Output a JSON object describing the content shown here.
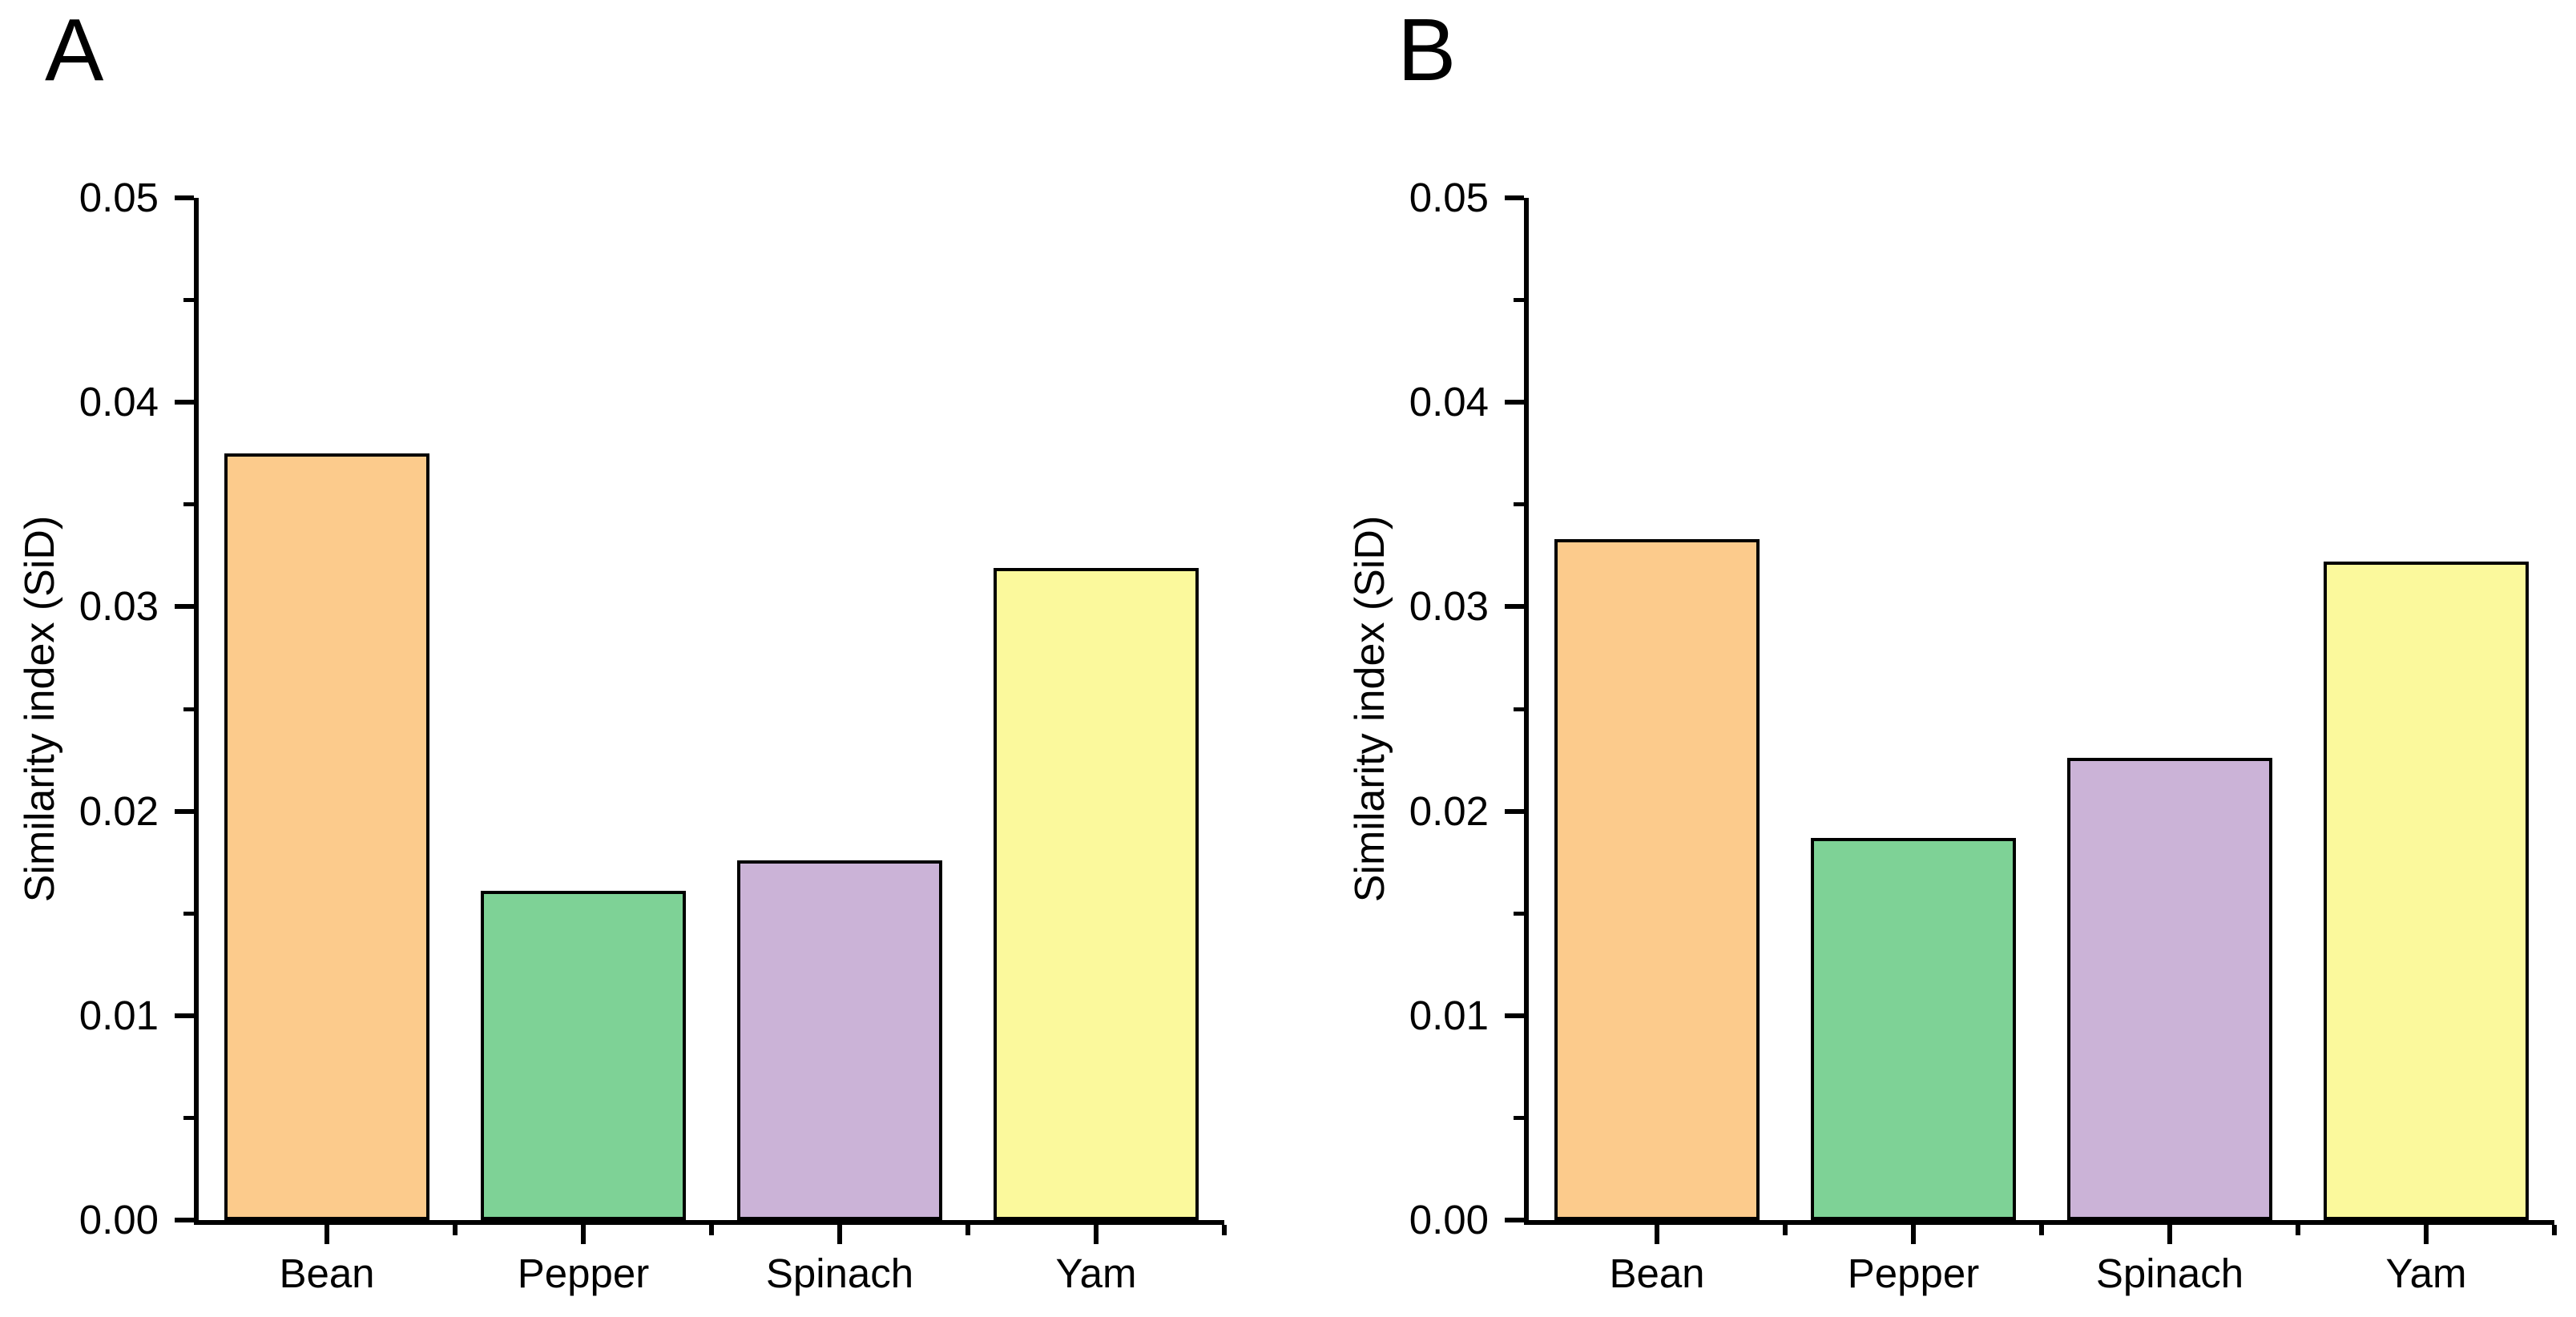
{
  "figure": {
    "panel_letters": [
      "A",
      "B"
    ]
  },
  "chart_data": [
    {
      "type": "bar",
      "panel_label": "A",
      "title": "",
      "xlabel": "",
      "ylabel": "Similarity index (SiD)",
      "categories": [
        "Bean",
        "Pepper",
        "Spinach",
        "Yam"
      ],
      "values": [
        0.0375,
        0.0161,
        0.0176,
        0.0319
      ],
      "ylim": [
        0,
        0.05
      ],
      "ytick_step": 0.01,
      "ytick_labels": [
        "0.00",
        "0.01",
        "0.02",
        "0.03",
        "0.04",
        "0.05"
      ],
      "minor_ticks": true,
      "grid": false,
      "legend": false,
      "bar_colors": [
        "#FCCB8C",
        "#7ED296",
        "#CBB3D7",
        "#FBF99C"
      ],
      "bar_edge_color": "#000000",
      "axis_color": "#000000",
      "background_color": "#FFFFFF"
    },
    {
      "type": "bar",
      "panel_label": "B",
      "title": "",
      "xlabel": "",
      "ylabel": "Similarity index (SiD)",
      "categories": [
        "Bean",
        "Pepper",
        "Spinach",
        "Yam"
      ],
      "values": [
        0.0333,
        0.0187,
        0.0226,
        0.0322
      ],
      "ylim": [
        0,
        0.05
      ],
      "ytick_step": 0.01,
      "ytick_labels": [
        "0.00",
        "0.01",
        "0.02",
        "0.03",
        "0.04",
        "0.05"
      ],
      "minor_ticks": true,
      "grid": false,
      "legend": false,
      "bar_colors": [
        "#FCCB8C",
        "#7ED296",
        "#CBB3D7",
        "#FBF99C"
      ],
      "bar_edge_color": "#000000",
      "axis_color": "#000000",
      "background_color": "#FFFFFF"
    }
  ]
}
